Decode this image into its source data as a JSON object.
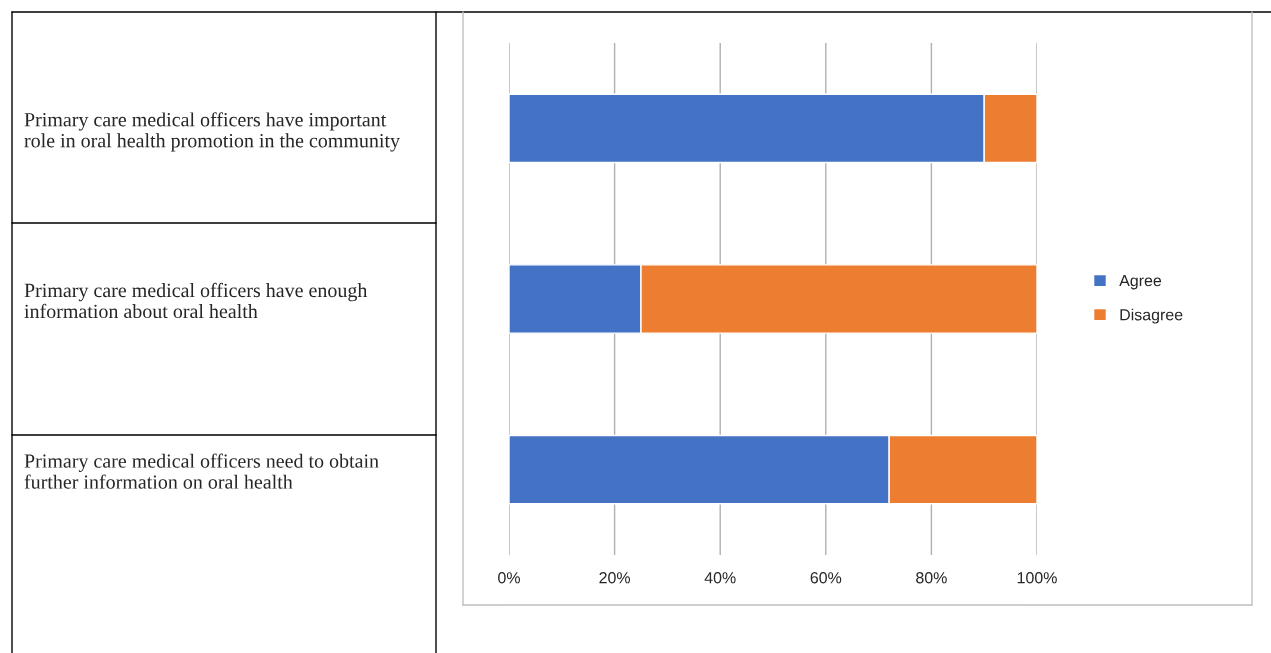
{
  "chart_data": {
    "type": "bar",
    "orientation": "horizontal",
    "stacked": true,
    "categories": [
      "Primary care medical officers have important role in oral health promotion in the community",
      "Primary care medical officers have enough information about oral health",
      "Primary care medical officers need to obtain further information on oral health"
    ],
    "series": [
      {
        "name": "Agree",
        "color": "#4472c4",
        "values": [
          90,
          25,
          72
        ]
      },
      {
        "name": "Disagree",
        "color": "#ed7d31",
        "values": [
          10,
          75,
          28
        ]
      }
    ],
    "xlim": [
      0,
      100
    ],
    "xticks": [
      {
        "value": 0,
        "label": "0%"
      },
      {
        "value": 20,
        "label": "20%"
      },
      {
        "value": 40,
        "label": "40%"
      },
      {
        "value": 60,
        "label": "60%"
      },
      {
        "value": 80,
        "label": "80%"
      },
      {
        "value": 100,
        "label": "100%"
      }
    ],
    "grid": "x",
    "legend": "right"
  }
}
